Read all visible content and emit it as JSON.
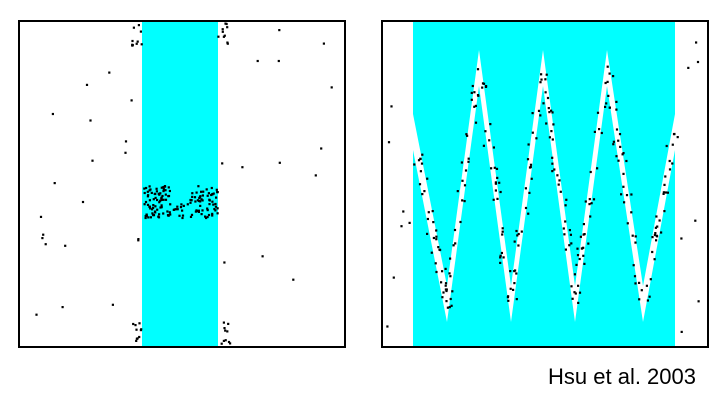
{
  "figure": {
    "citation": "Hsu et al. 2003",
    "region_color": "#00FFFF",
    "sample_color": "#000000",
    "background_color": "#FFFFFF"
  },
  "panels": [
    {
      "name": "narrow-passage-panel"
    },
    {
      "name": "zigzag-corridor-panel"
    }
  ]
}
